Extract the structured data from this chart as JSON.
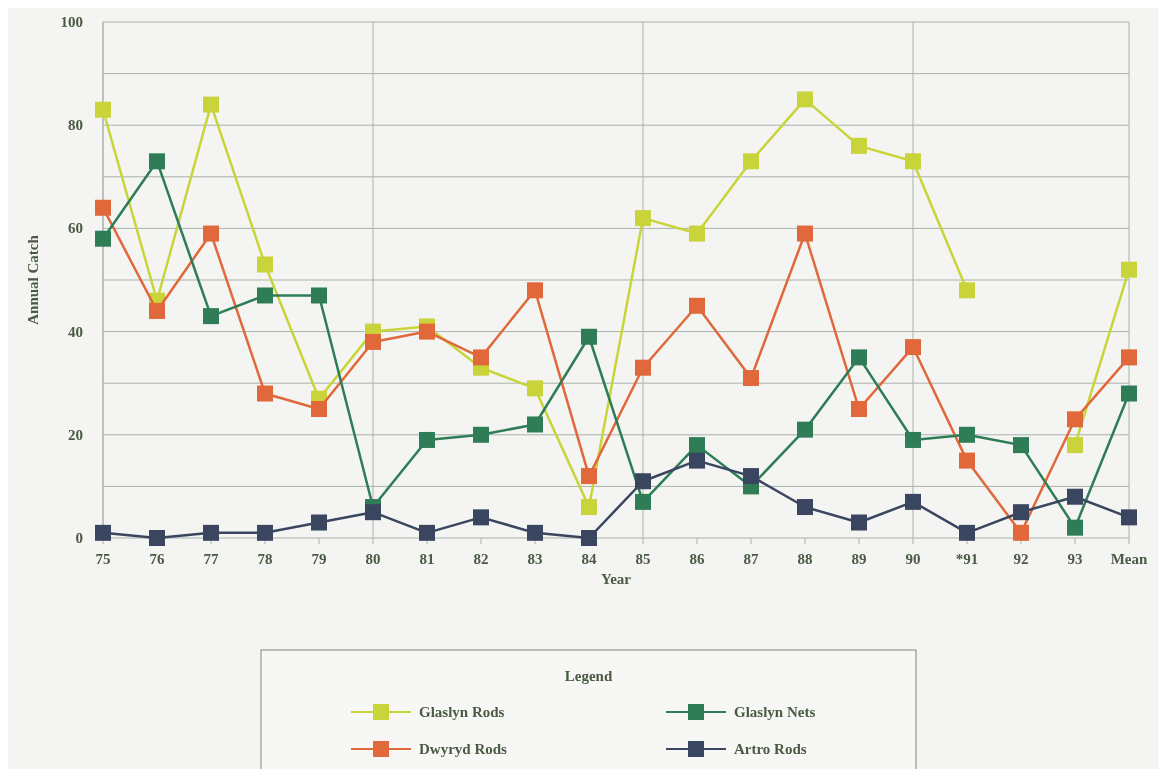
{
  "chart_data": {
    "type": "line",
    "xlabel": "Year",
    "ylabel": "Annual Catch",
    "legend_title": "Legend",
    "categories": [
      "75",
      "76",
      "77",
      "78",
      "79",
      "80",
      "81",
      "82",
      "83",
      "84",
      "85",
      "86",
      "87",
      "88",
      "89",
      "90",
      "*91",
      "92",
      "93",
      "Mean"
    ],
    "ylim": [
      0,
      100
    ],
    "yticks": [
      0,
      20,
      40,
      60,
      80,
      100
    ],
    "grid": true,
    "legend": "bottom",
    "marker": "square",
    "line_style": "solid",
    "series": [
      {
        "name": "Glaslyn Rods",
        "color": "#c8d43a",
        "values": [
          83,
          46,
          84,
          53,
          27,
          40,
          41,
          33,
          29,
          6,
          62,
          59,
          73,
          85,
          76,
          73,
          48,
          null,
          18,
          52
        ]
      },
      {
        "name": "Dwyryd Rods",
        "color": "#e0683a",
        "values": [
          64,
          44,
          59,
          28,
          25,
          38,
          40,
          35,
          48,
          12,
          33,
          45,
          31,
          59,
          25,
          37,
          15,
          1,
          23,
          35
        ]
      },
      {
        "name": "Glaslyn Nets",
        "color": "#2e7d57",
        "values": [
          58,
          73,
          43,
          47,
          47,
          6,
          19,
          20,
          22,
          39,
          7,
          18,
          10,
          21,
          35,
          19,
          20,
          18,
          2,
          28
        ]
      },
      {
        "name": "Artro Rods",
        "color": "#3a4560",
        "values": [
          1,
          0,
          1,
          1,
          3,
          5,
          1,
          4,
          1,
          0,
          11,
          15,
          12,
          6,
          3,
          7,
          1,
          5,
          8,
          4
        ]
      }
    ]
  }
}
